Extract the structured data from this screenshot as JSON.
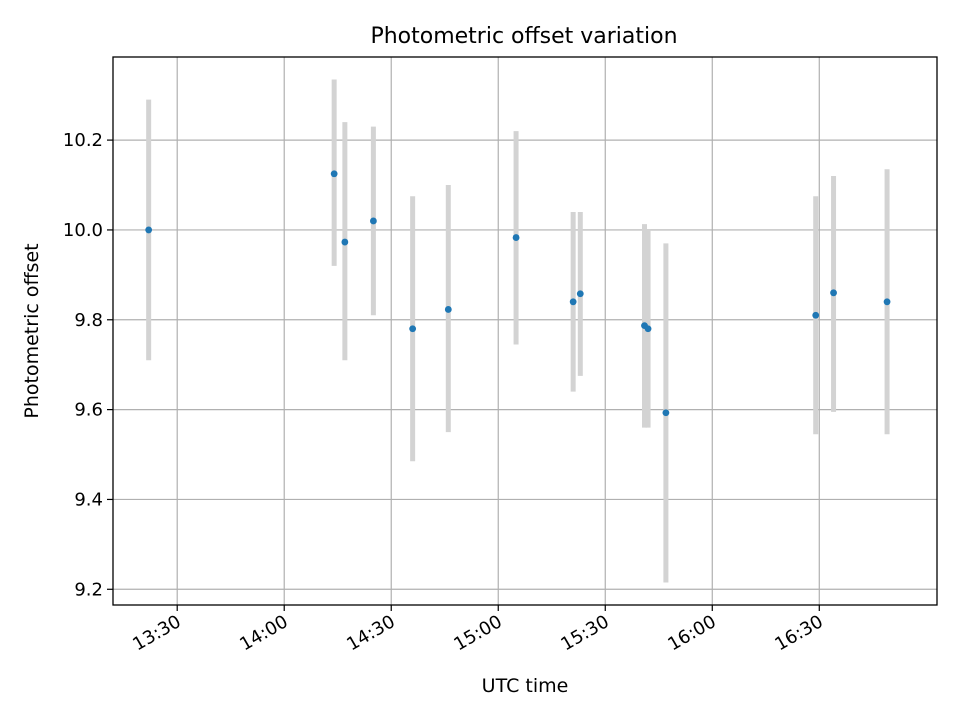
{
  "chart_data": {
    "type": "scatter",
    "title": "Photometric offset variation",
    "xlabel": "UTC time",
    "ylabel": "Photometric offset",
    "xlim": [
      "13:12",
      "17:03"
    ],
    "ylim": [
      9.165,
      10.385
    ],
    "grid": true,
    "x_ticks": [
      "13:30",
      "14:00",
      "14:30",
      "15:00",
      "15:30",
      "16:00",
      "16:30"
    ],
    "y_ticks": [
      9.2,
      9.4,
      9.6,
      9.8,
      10.0,
      10.2
    ],
    "colors": {
      "point": "#1f77b4",
      "error_bar": "#d3d3d3",
      "grid": "#b0b0b0"
    },
    "series": [
      {
        "points": [
          {
            "x": "13:22",
            "y": 10.0,
            "err_low": 9.71,
            "err_high": 10.29
          },
          {
            "x": "14:14",
            "y": 10.125,
            "err_low": 9.92,
            "err_high": 10.335
          },
          {
            "x": "14:17",
            "y": 9.973,
            "err_low": 9.71,
            "err_high": 10.24
          },
          {
            "x": "14:25",
            "y": 10.02,
            "err_low": 9.81,
            "err_high": 10.23
          },
          {
            "x": "14:36",
            "y": 9.78,
            "err_low": 9.485,
            "err_high": 10.075
          },
          {
            "x": "14:46",
            "y": 9.823,
            "err_low": 9.55,
            "err_high": 10.1
          },
          {
            "x": "15:05",
            "y": 9.983,
            "err_low": 9.745,
            "err_high": 10.22
          },
          {
            "x": "15:21",
            "y": 9.84,
            "err_low": 9.64,
            "err_high": 10.04
          },
          {
            "x": "15:23",
            "y": 9.858,
            "err_low": 9.675,
            "err_high": 10.04
          },
          {
            "x": "15:41",
            "y": 9.787,
            "err_low": 9.56,
            "err_high": 10.013
          },
          {
            "x": "15:42",
            "y": 9.78,
            "err_low": 9.56,
            "err_high": 10.0
          },
          {
            "x": "15:47",
            "y": 9.593,
            "err_low": 9.215,
            "err_high": 9.97
          },
          {
            "x": "16:29",
            "y": 9.81,
            "err_low": 9.545,
            "err_high": 10.075
          },
          {
            "x": "16:34",
            "y": 9.86,
            "err_low": 9.595,
            "err_high": 10.12
          },
          {
            "x": "16:49",
            "y": 9.84,
            "err_low": 9.545,
            "err_high": 10.135
          }
        ]
      }
    ]
  }
}
